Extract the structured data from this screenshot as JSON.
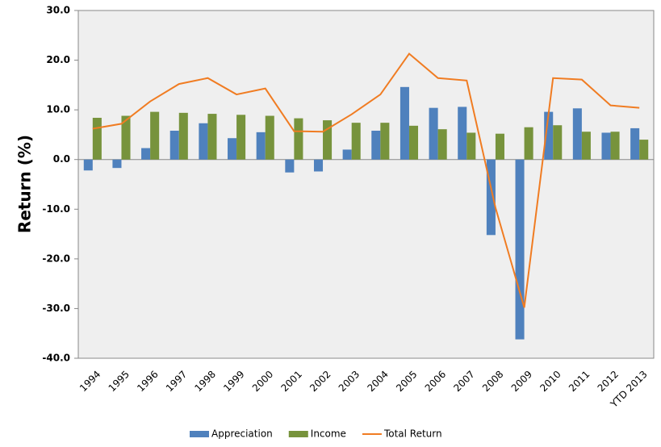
{
  "chart_data": {
    "type": "bar_line",
    "y_label": "Return (%)",
    "categories": [
      "1994",
      "1995",
      "1996",
      "1997",
      "1998",
      "1999",
      "2000",
      "2001",
      "2002",
      "2003",
      "2004",
      "2005",
      "2006",
      "2007",
      "2008",
      "2009",
      "2010",
      "2011",
      "2012",
      "YTD 2013"
    ],
    "series": [
      {
        "name": "Appreciation",
        "type": "bar",
        "color": "#4f81bd",
        "values": [
          -2.2,
          -1.7,
          2.3,
          5.8,
          7.3,
          4.3,
          5.5,
          -2.6,
          -2.4,
          2.0,
          5.8,
          14.6,
          10.4,
          10.6,
          -15.2,
          -36.2,
          9.6,
          10.3,
          5.4,
          6.3
        ]
      },
      {
        "name": "Income",
        "type": "bar",
        "color": "#77933c",
        "values": [
          8.4,
          8.8,
          9.6,
          9.4,
          9.2,
          9.0,
          8.8,
          8.3,
          7.9,
          7.4,
          7.4,
          6.8,
          6.1,
          5.4,
          5.2,
          6.5,
          6.9,
          5.6,
          5.6,
          4.0
        ]
      },
      {
        "name": "Total Return",
        "type": "line",
        "color": "#f07c22",
        "values": [
          6.2,
          7.2,
          11.7,
          15.2,
          16.4,
          13.1,
          14.3,
          5.7,
          5.6,
          9.1,
          13.1,
          21.3,
          16.4,
          15.9,
          -9.7,
          -29.8,
          16.4,
          16.1,
          10.9,
          10.4
        ]
      }
    ],
    "ylim": [
      -40,
      30
    ],
    "yticks": [
      {
        "value": -40,
        "label": "-40.0"
      },
      {
        "value": -30,
        "label": "-30.0"
      },
      {
        "value": -20,
        "label": "-20.0"
      },
      {
        "value": -10,
        "label": "-10.0"
      },
      {
        "value": 0,
        "label": "0.0"
      },
      {
        "value": 10,
        "label": "10.0"
      },
      {
        "value": 20,
        "label": "20.0"
      },
      {
        "value": 30,
        "label": "30.0"
      }
    ],
    "grid": false,
    "legend": "bottom"
  }
}
